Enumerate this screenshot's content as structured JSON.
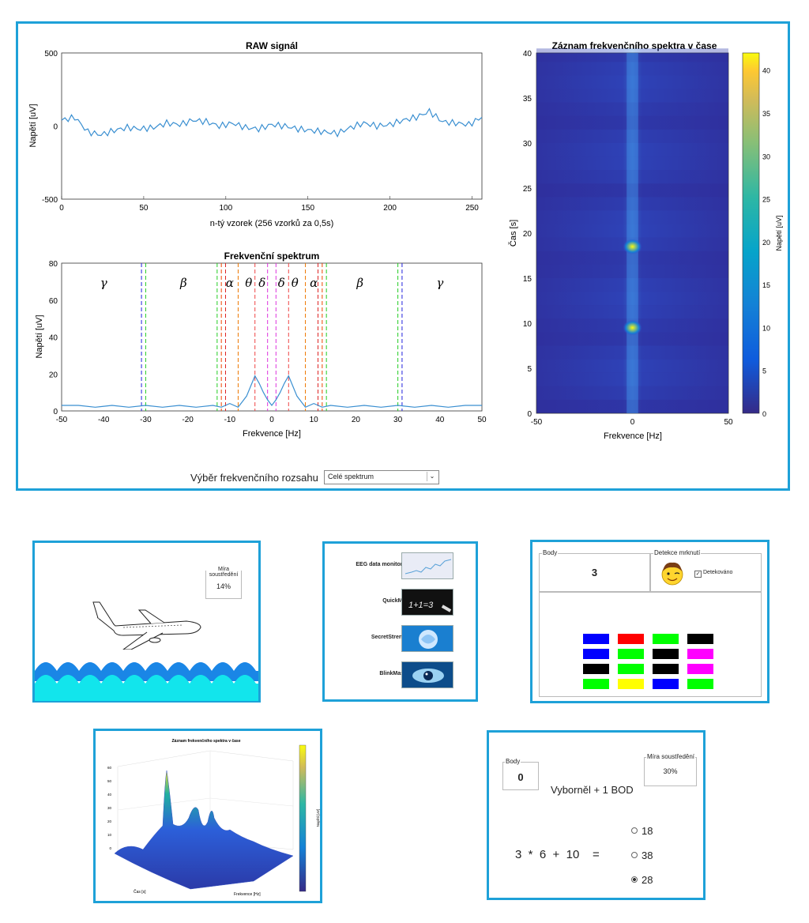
{
  "main_panel": {
    "raw_title": "RAW signál",
    "raw_ylabel": "Napětí [uV]",
    "raw_xlabel": "n-tý vzorek (256 vzorků za 0,5s)",
    "spec_title": "Frekvenční spektrum",
    "spec_ylabel": "Napětí [uV]",
    "spec_xlabel": "Frekvence [Hz]",
    "band_labels": [
      "γ",
      "β",
      "α",
      "θ",
      "δ",
      "δ",
      "θ",
      "α",
      "β",
      "γ"
    ],
    "hm_title": "Záznam frekvenčního spektra v čase",
    "hm_ylabel": "Čas [s]",
    "hm_xlabel": "Frekvence [Hz]",
    "hm_cbar_label": "Napětí [uV]",
    "range_label": "Výběr frekvenčního rozsahu",
    "range_value": "Celé spektrum"
  },
  "chart_data": [
    {
      "type": "line",
      "title": "RAW signál",
      "xlabel": "n-tý vzorek (256 vzorků za 0,5s)",
      "ylabel": "Napětí [uV]",
      "xlim": [
        0,
        256
      ],
      "ylim": [
        -500,
        500
      ],
      "xticks": [
        "0",
        "50",
        "100",
        "150",
        "200",
        "250"
      ],
      "yticks": [
        "500",
        "0",
        "-500"
      ],
      "x": [
        0,
        8,
        16,
        24,
        32,
        40,
        48,
        56,
        64,
        72,
        80,
        88,
        96,
        104,
        112,
        120,
        128,
        136,
        144,
        152,
        160,
        168,
        176,
        184,
        192,
        200,
        208,
        216,
        224,
        232,
        240,
        248,
        256
      ],
      "values": [
        40,
        60,
        -40,
        -60,
        -30,
        -10,
        -20,
        -10,
        20,
        10,
        40,
        30,
        0,
        20,
        -10,
        -20,
        10,
        0,
        -20,
        -30,
        -40,
        -50,
        -10,
        20,
        0,
        10,
        40,
        60,
        100,
        30,
        20,
        10,
        60
      ]
    },
    {
      "type": "line",
      "title": "Frekvenční spektrum",
      "xlabel": "Frekvence [Hz]",
      "ylabel": "Napětí [uV]",
      "xlim": [
        -50,
        50
      ],
      "ylim": [
        0,
        80
      ],
      "xticks": [
        "-50",
        "-40",
        "-30",
        "-20",
        "-10",
        "0",
        "10",
        "20",
        "30",
        "40",
        "50"
      ],
      "yticks": [
        "80",
        "60",
        "40",
        "20",
        "0"
      ],
      "x": [
        -50,
        -46,
        -42,
        -38,
        -34,
        -30,
        -26,
        -22,
        -18,
        -14,
        -12,
        -10,
        -8,
        -6,
        -4,
        -3,
        -2,
        -1,
        0,
        1,
        2,
        3,
        4,
        6,
        8,
        10,
        12,
        14,
        18,
        22,
        26,
        30,
        34,
        38,
        42,
        46,
        50
      ],
      "values": [
        3,
        3,
        2,
        3,
        2,
        3,
        2,
        3,
        2,
        3,
        2,
        4,
        2,
        8,
        19,
        15,
        10,
        6,
        3,
        6,
        10,
        15,
        19,
        8,
        2,
        4,
        2,
        3,
        2,
        3,
        2,
        3,
        2,
        3,
        2,
        3,
        3
      ],
      "band_lines": [
        -31,
        -30,
        -13,
        -12,
        -11,
        -8,
        -4,
        -1,
        1,
        4,
        8,
        11,
        12,
        13,
        30,
        31
      ]
    },
    {
      "type": "heatmap",
      "title": "Záznam frekvenčního spektra v čase",
      "xlabel": "Frekvence [Hz]",
      "ylabel": "Čas [s]",
      "xlim": [
        -50,
        50
      ],
      "ylim": [
        0,
        40
      ],
      "xticks": [
        "-50",
        "0",
        "50"
      ],
      "yticks": [
        "40",
        "35",
        "30",
        "25",
        "20",
        "15",
        "10",
        "5",
        "0"
      ],
      "colorbar": {
        "label": "Napětí [uV]",
        "range": [
          0,
          42
        ],
        "ticks": [
          "40",
          "35",
          "30",
          "25",
          "20",
          "15",
          "10",
          "5",
          "0"
        ]
      },
      "hotspots": [
        {
          "x": 0,
          "y": 18.5,
          "value": 40
        },
        {
          "x": 0,
          "y": 9.5,
          "value": 38
        }
      ]
    }
  ],
  "airplane_panel": {
    "focus_label": "Míra soustředění",
    "focus_value": "14%"
  },
  "menu_panel": {
    "items": [
      {
        "label": "EEG data monitoring",
        "icon": "chart-thumbnail-icon"
      },
      {
        "label": "QuickMath",
        "icon": "chalkboard-thumbnail-icon"
      },
      {
        "label": "SecretStrength",
        "icon": "brain-thumbnail-icon"
      },
      {
        "label": "BlinkMaster",
        "icon": "eye-thumbnail-icon"
      }
    ]
  },
  "blink_panel": {
    "score_label": "Body",
    "score_value": "3",
    "blink_label": "Detekce mrknutí",
    "blink_checkbox": "Detekováno",
    "grid_colors": [
      "#0000ff",
      "#ff0000",
      "#00ff00",
      "#000000",
      "#0000ff",
      "#00ff00",
      "#000000",
      "#ff00ff",
      "#000000",
      "#00ff00",
      "#000000",
      "#ff00ff",
      "#00ff00",
      "#ffff00",
      "#0000ff",
      "#00ff00"
    ]
  },
  "surface_panel": {
    "title": "Záznam frekvenčního spektra v čase",
    "ylabel": "Čas [s]",
    "xlabel": "Frekvence [Hz]",
    "zticks": [
      "60",
      "50",
      "40",
      "30",
      "20",
      "10",
      "0"
    ],
    "cbar_label": "Napětí [uV]"
  },
  "math_panel": {
    "score_label": "Body",
    "score_value": "0",
    "focus_label": "Míra soustředění",
    "focus_value": "30%",
    "feedback": "Vyborněl + 1 BOD",
    "equation": "3  *  6  +  10    =",
    "options": [
      "18",
      "38",
      "28"
    ],
    "selected_index": 2
  }
}
